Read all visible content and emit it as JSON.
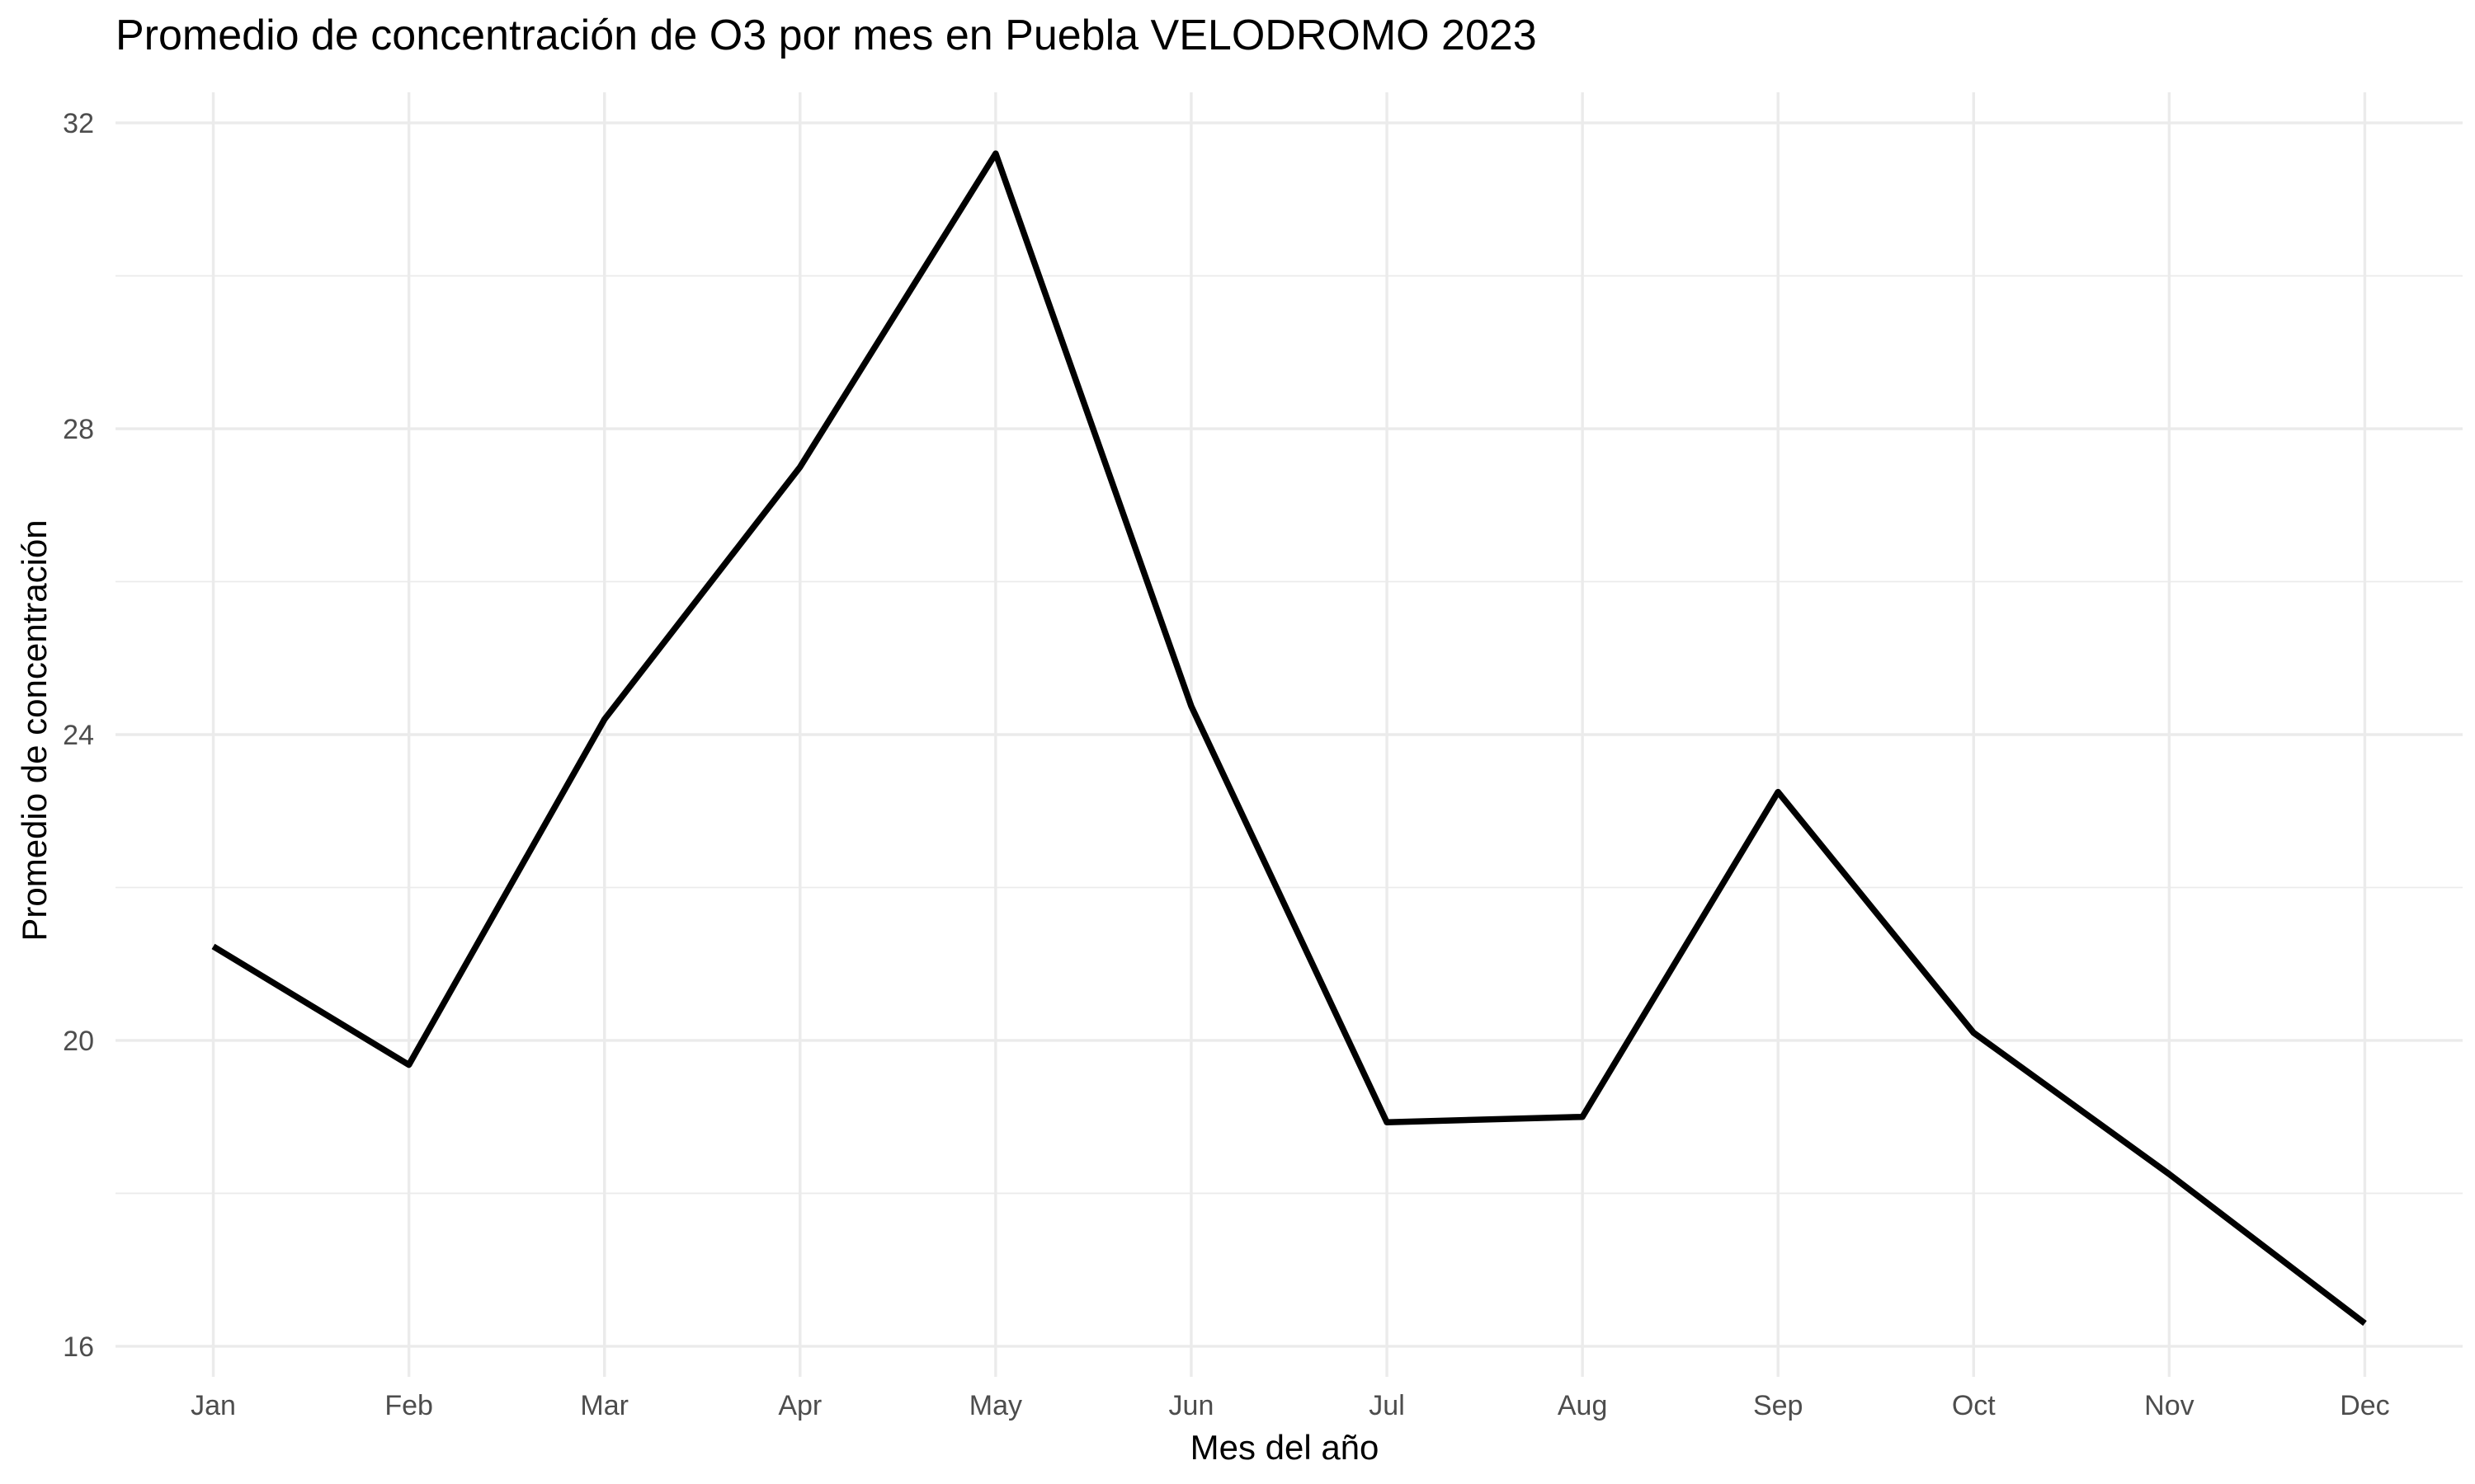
{
  "chart_data": {
    "type": "line",
    "title": "Promedio de concentración de O3 por mes en Puebla VELODROMO 2023",
    "xlabel": "Mes del año",
    "ylabel": "Promedio de concentración",
    "categories": [
      "Jan",
      "Feb",
      "Mar",
      "Apr",
      "May",
      "Jun",
      "Jul",
      "Aug",
      "Sep",
      "Oct",
      "Nov",
      "Dec"
    ],
    "series": [
      {
        "values": [
          21.23,
          19.68,
          24.2,
          27.5,
          31.6,
          24.37,
          18.93,
          19.0,
          23.25,
          20.1,
          18.25,
          16.3
        ]
      }
    ],
    "ylim": [
      15.6,
      32.4
    ],
    "yticks": [
      16,
      20,
      24,
      28,
      32
    ],
    "grid": true,
    "legend": "none",
    "colors": {
      "line": "#000000",
      "grid": "#ebebeb",
      "tick_text": "#4d4d4d",
      "background": "#ffffff"
    }
  }
}
